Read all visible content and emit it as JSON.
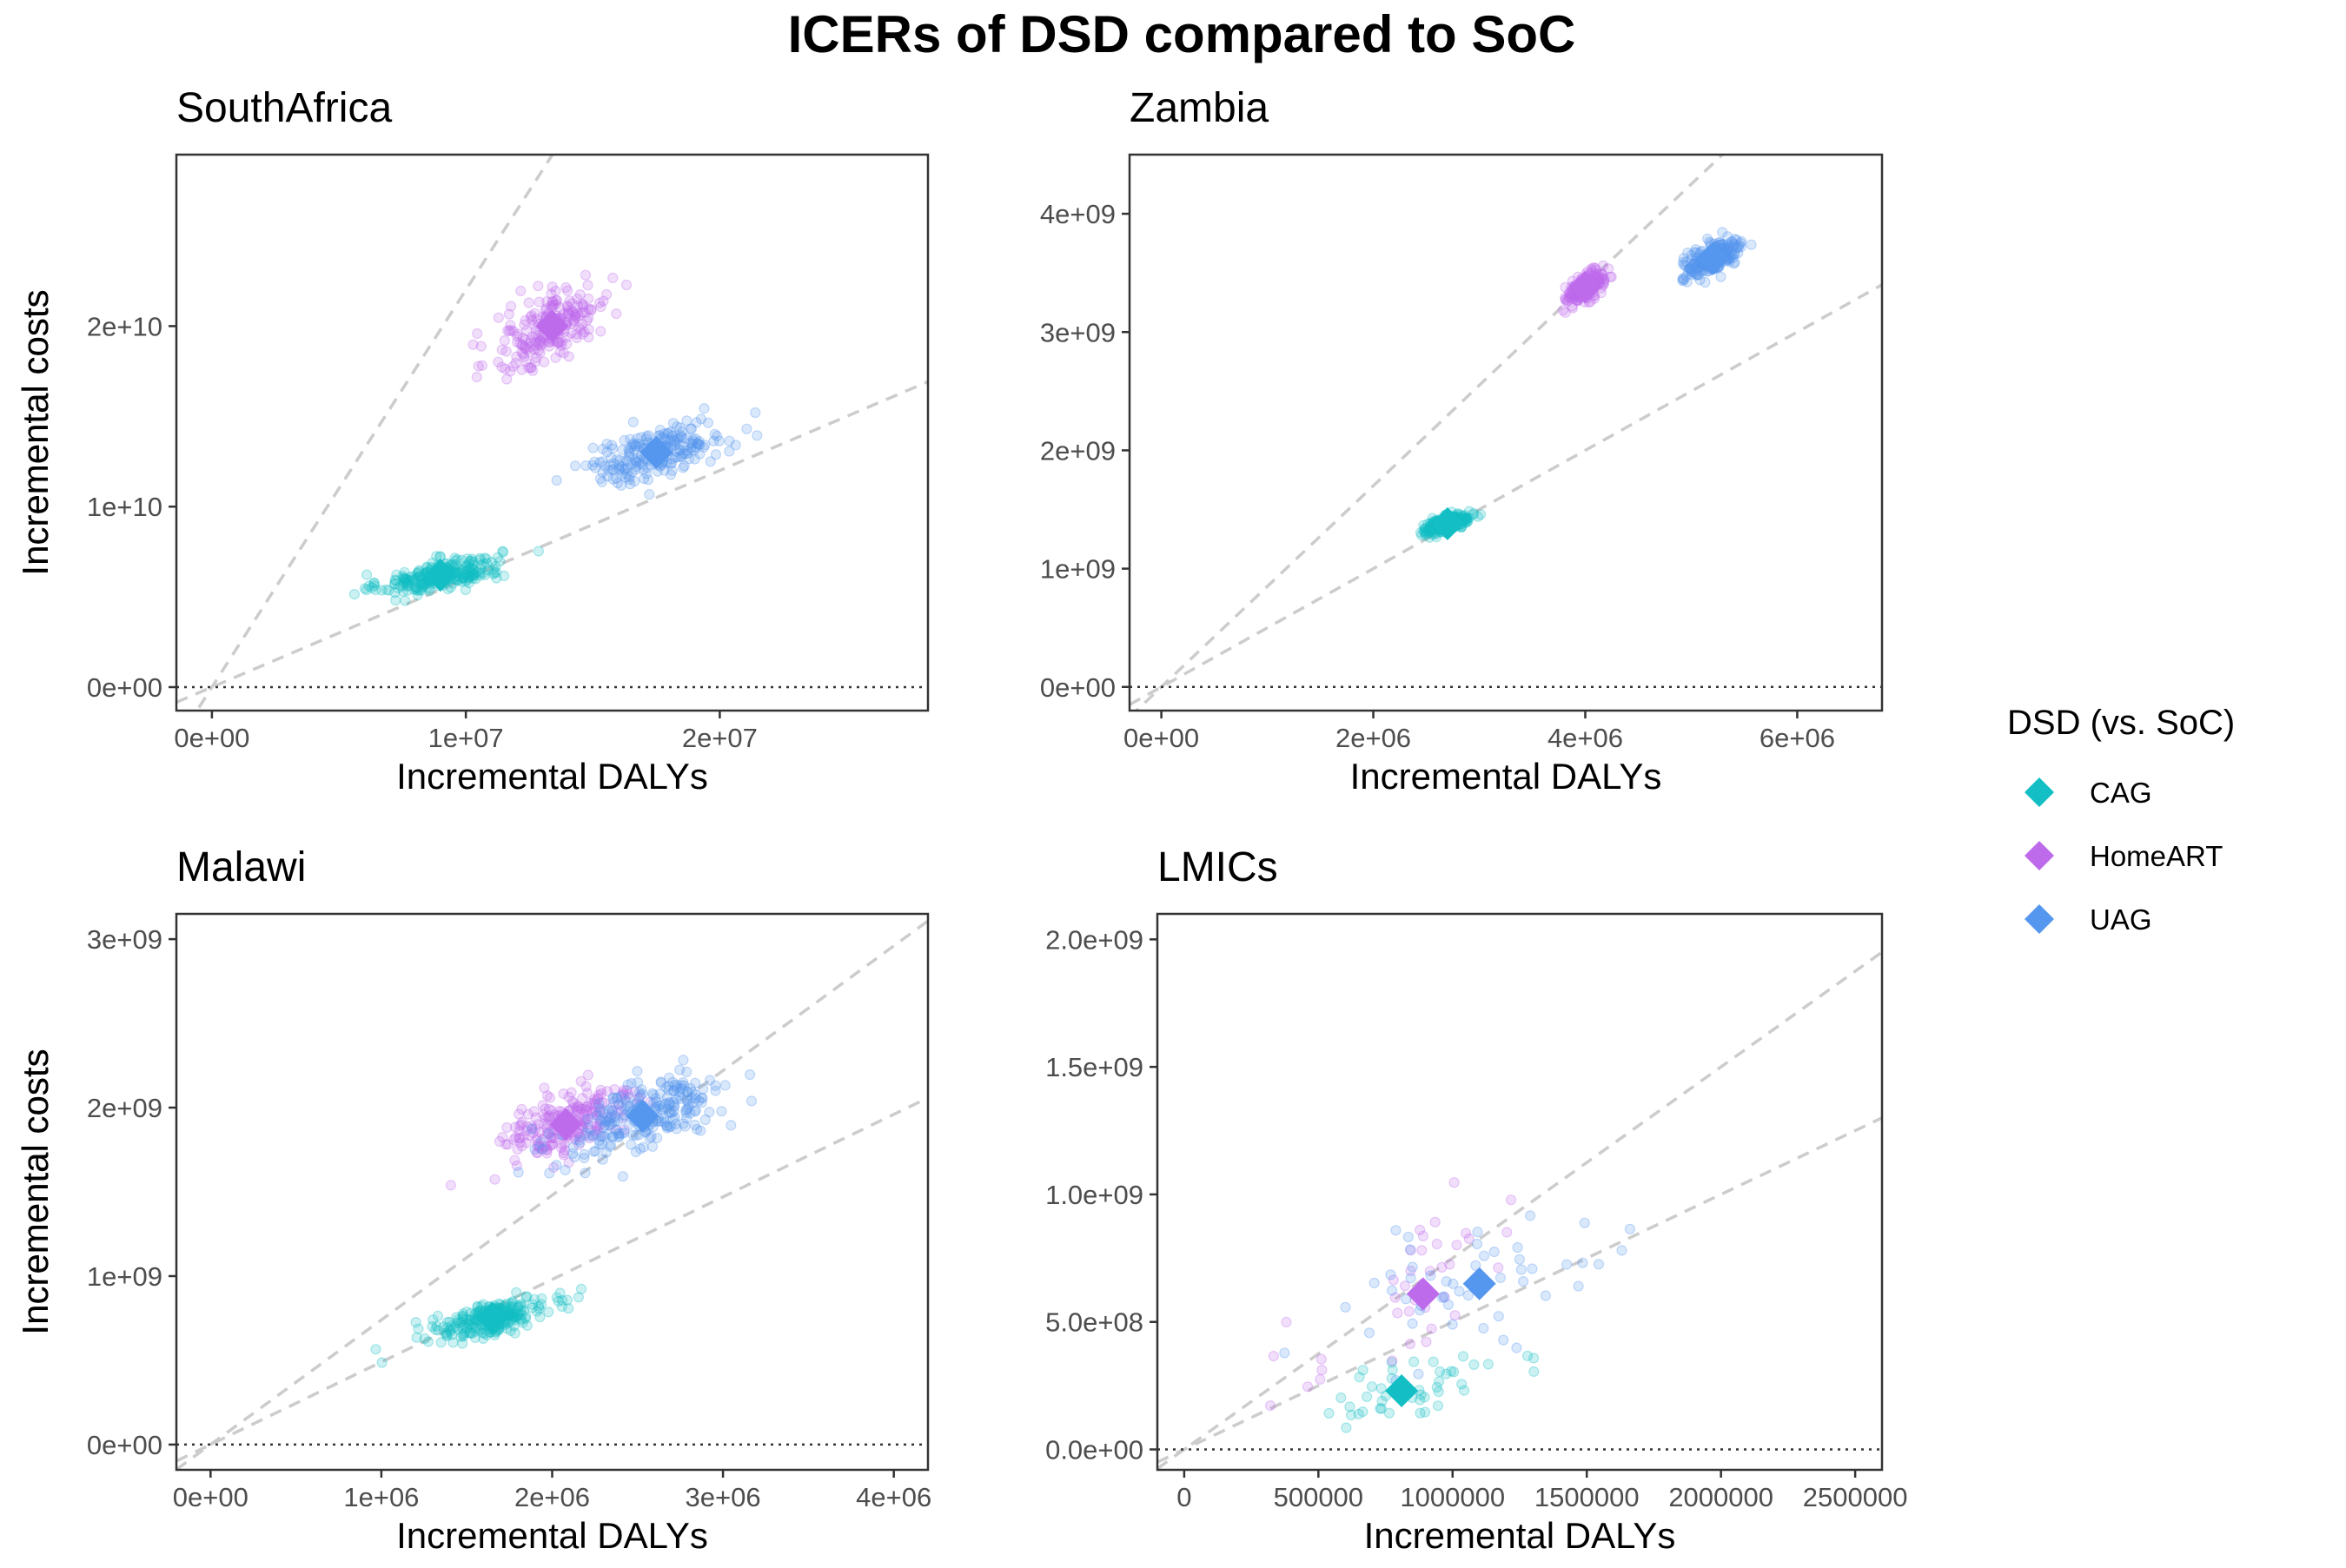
{
  "title": "ICERs of DSD compared to SoC",
  "legend": {
    "title": "DSD (vs. SoC)",
    "entries": [
      {
        "label": "CAG",
        "color": "#13BFC4"
      },
      {
        "label": "HomeART",
        "color": "#BE6BEB"
      },
      {
        "label": "UAG",
        "color": "#5596EE"
      }
    ]
  },
  "colors": {
    "panel_border": "#333333",
    "reference_line": "#cccccc",
    "zero_line": "#333333"
  },
  "chart_data": [
    {
      "type": "scatter",
      "title": "SouthAfrica",
      "xlabel": "Incremental DALYs",
      "ylabel": "Incremental costs",
      "xlim": [
        -1400000,
        28200000
      ],
      "ylim": [
        -1300000000,
        29500000000
      ],
      "x_ticks": [
        {
          "value": 0,
          "label": "0e+00"
        },
        {
          "value": 10000000,
          "label": "1e+07"
        },
        {
          "value": 20000000,
          "label": "2e+07"
        }
      ],
      "y_ticks": [
        {
          "value": 0,
          "label": "0e+00"
        },
        {
          "value": 10000000000,
          "label": "1e+10"
        },
        {
          "value": 20000000000,
          "label": "2e+10"
        }
      ],
      "reference_slopes": [
        2200,
        600
      ],
      "series": [
        {
          "name": "CAG",
          "mean": [
            9000000,
            6200000000
          ],
          "spread": [
            2400000,
            900000000
          ],
          "n": 260
        },
        {
          "name": "HomeART",
          "mean": [
            13400000,
            20000000000
          ],
          "spread": [
            2300000,
            2200000000
          ],
          "n": 220
        },
        {
          "name": "UAG",
          "mean": [
            17500000,
            13000000000
          ],
          "spread": [
            2700000,
            1500000000
          ],
          "n": 220
        }
      ]
    },
    {
      "type": "scatter",
      "title": "Zambia",
      "xlabel": "Incremental DALYs",
      "ylabel": "Incremental costs",
      "xlim": [
        -300000,
        6800000
      ],
      "ylim": [
        -200000000,
        4500000000
      ],
      "x_ticks": [
        {
          "value": 0,
          "label": "0e+00"
        },
        {
          "value": 2000000,
          "label": "2e+06"
        },
        {
          "value": 4000000,
          "label": "4e+06"
        },
        {
          "value": 6000000,
          "label": "6e+06"
        }
      ],
      "y_ticks": [
        {
          "value": 0,
          "label": "0e+00"
        },
        {
          "value": 1000000000,
          "label": "1e+09"
        },
        {
          "value": 2000000000,
          "label": "2e+09"
        },
        {
          "value": 3000000000,
          "label": "3e+09"
        },
        {
          "value": 4000000000,
          "label": "4e+09"
        }
      ],
      "reference_slopes": [
        850,
        500
      ],
      "series": [
        {
          "name": "CAG",
          "mean": [
            2700000,
            1380000000
          ],
          "spread": [
            220000,
            70000000
          ],
          "n": 260
        },
        {
          "name": "HomeART",
          "mean": [
            4000000,
            3380000000
          ],
          "spread": [
            170000,
            120000000
          ],
          "n": 220
        },
        {
          "name": "UAG",
          "mean": [
            5200000,
            3620000000
          ],
          "spread": [
            280000,
            130000000
          ],
          "n": 240
        }
      ]
    },
    {
      "type": "scatter",
      "title": "Malawi",
      "xlabel": "Incremental DALYs",
      "ylabel": "Incremental costs",
      "xlim": [
        -200000,
        4200000
      ],
      "ylim": [
        -150000000,
        3150000000
      ],
      "x_ticks": [
        {
          "value": 0,
          "label": "0e+00"
        },
        {
          "value": 1000000,
          "label": "1e+06"
        },
        {
          "value": 2000000,
          "label": "2e+06"
        },
        {
          "value": 3000000,
          "label": "3e+06"
        },
        {
          "value": 4000000,
          "label": "4e+06"
        }
      ],
      "y_ticks": [
        {
          "value": 0,
          "label": "0e+00"
        },
        {
          "value": 1000000000,
          "label": "1e+09"
        },
        {
          "value": 2000000000,
          "label": "2e+09"
        },
        {
          "value": 3000000000,
          "label": "3e+09"
        }
      ],
      "reference_slopes": [
        740,
        490
      ],
      "series": [
        {
          "name": "CAG",
          "mean": [
            1650000,
            750000000
          ],
          "spread": [
            330000,
            100000000
          ],
          "n": 260
        },
        {
          "name": "HomeART",
          "mean": [
            2080000,
            1900000000
          ],
          "spread": [
            420000,
            230000000
          ],
          "n": 220
        },
        {
          "name": "UAG",
          "mean": [
            2530000,
            1950000000
          ],
          "spread": [
            480000,
            220000000
          ],
          "n": 240
        }
      ]
    },
    {
      "type": "scatter",
      "title": "LMICs",
      "xlabel": "Incremental DALYs",
      "ylabel": "Incremental costs",
      "xlim": [
        -100000,
        2600000
      ],
      "ylim": [
        -80000000,
        2100000000
      ],
      "x_ticks": [
        {
          "value": 0,
          "label": "0"
        },
        {
          "value": 500000,
          "label": "500000"
        },
        {
          "value": 1000000,
          "label": "1000000"
        },
        {
          "value": 1500000,
          "label": "1500000"
        },
        {
          "value": 2000000,
          "label": "2000000"
        },
        {
          "value": 2500000,
          "label": "2500000"
        }
      ],
      "y_ticks": [
        {
          "value": 0,
          "label": "0.0e+00"
        },
        {
          "value": 500000000,
          "label": "5.0e+08"
        },
        {
          "value": 1000000000,
          "label": "1.0e+09"
        },
        {
          "value": 1500000000,
          "label": "1.5e+09"
        },
        {
          "value": 2000000000,
          "label": "2.0e+09"
        }
      ],
      "reference_slopes": [
        750,
        500
      ],
      "series": [
        {
          "name": "CAG",
          "mean": [
            810000,
            230000000
          ],
          "spread": [
            420000,
            140000000
          ],
          "n": 45
        },
        {
          "name": "HomeART",
          "mean": [
            890000,
            610000000
          ],
          "spread": [
            450000,
            300000000
          ],
          "n": 40
        },
        {
          "name": "UAG",
          "mean": [
            1100000,
            650000000
          ],
          "spread": [
            650000,
            330000000
          ],
          "n": 50
        }
      ]
    }
  ]
}
